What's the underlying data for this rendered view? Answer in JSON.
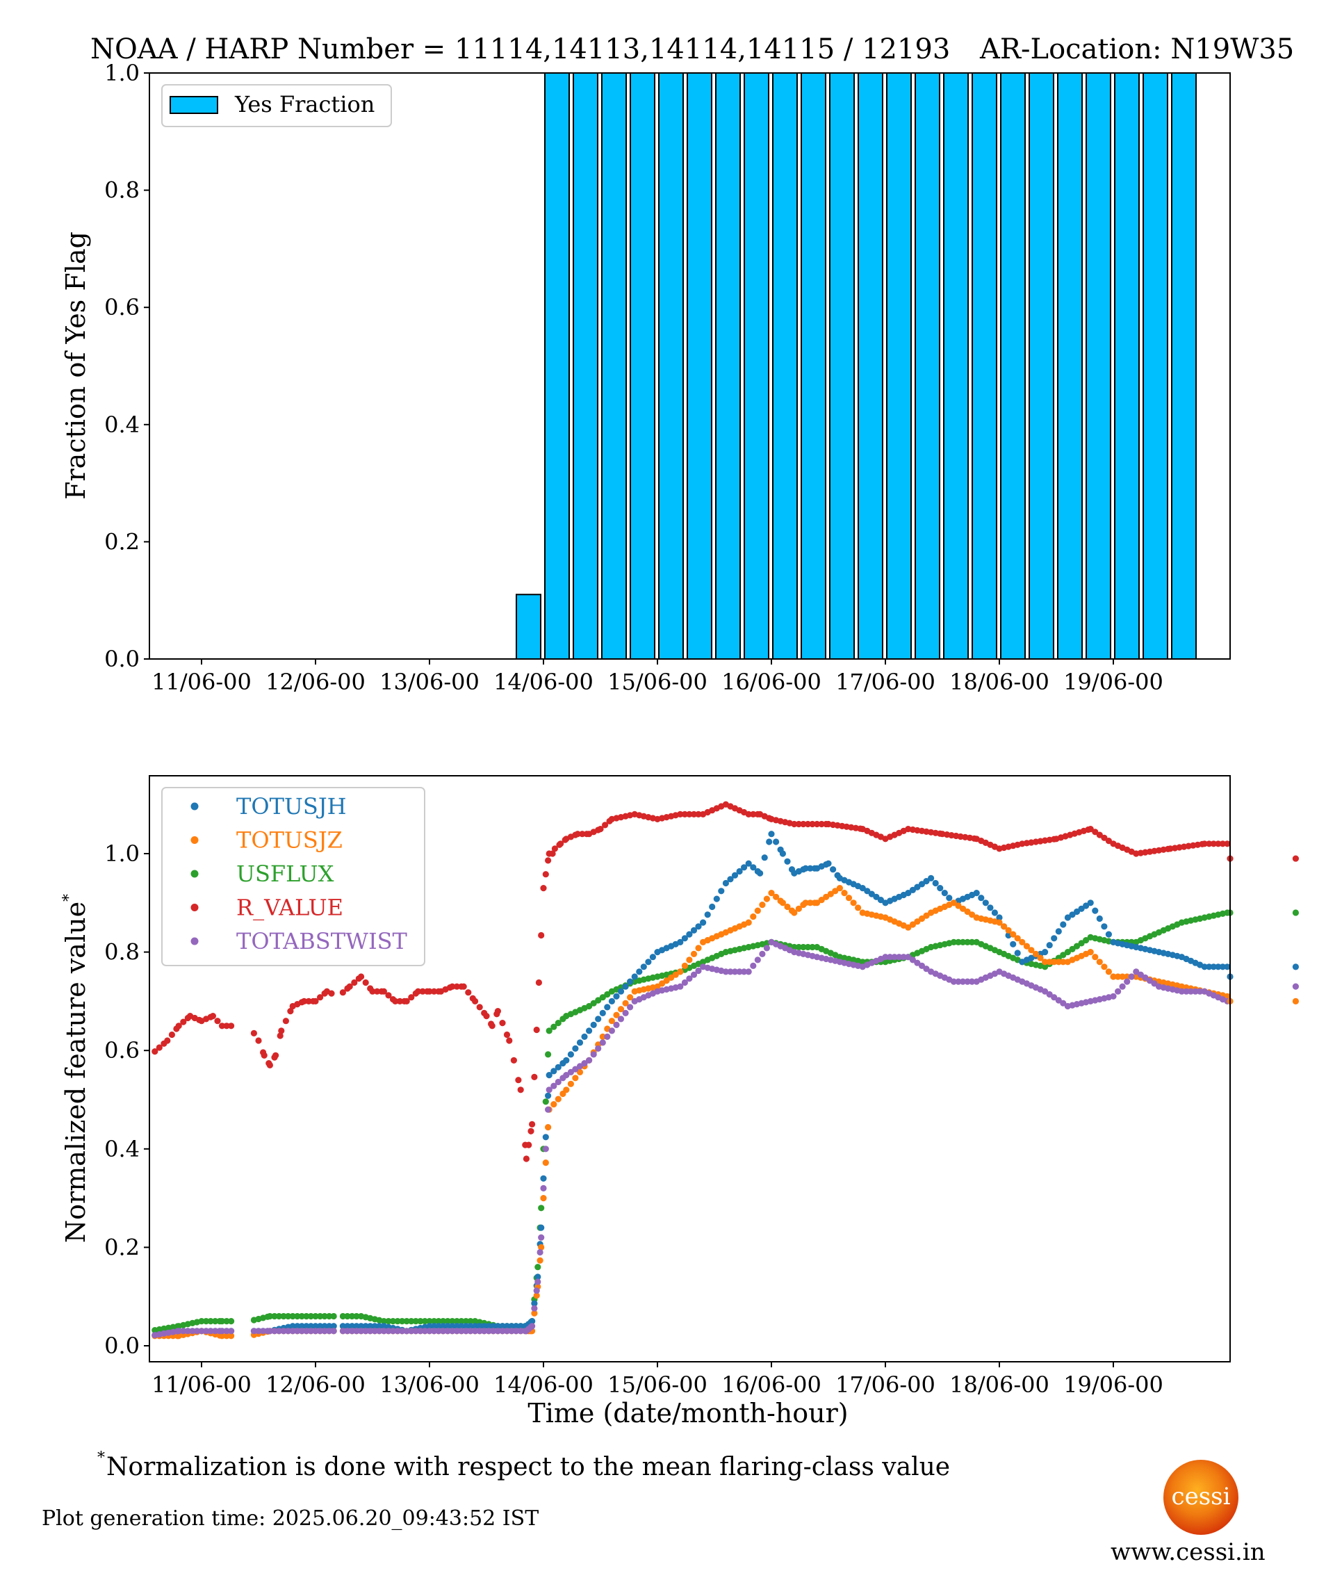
{
  "header": {
    "title_left": "NOAA / HARP Number = 11114,14113,14114,14115 / 12193",
    "title_right": "AR-Location: N19W35"
  },
  "footer": {
    "footnote_marker": "*",
    "footnote": "Normalization is done with respect to the mean flaring-class value",
    "generation_time": "Plot generation time: 2025.06.20_09:43:52 IST",
    "website": "www.cessi.in",
    "logo_text": "cessi"
  },
  "colors": {
    "bar_fill": "#00bfff",
    "TOTUSJH": "#1f77b4",
    "TOTUSJZ": "#ff7f0e",
    "USFLUX": "#2ca02c",
    "R_VALUE": "#d62728",
    "TOTABSTWIST": "#9467bd"
  },
  "chart_data": [
    {
      "type": "bar",
      "ylabel": "Fraction of Yes Flag",
      "xlabel": "",
      "ylim": [
        0.0,
        1.0
      ],
      "yticks": [
        "0.0",
        "0.2",
        "0.4",
        "0.6",
        "0.8",
        "1.0"
      ],
      "xticks": [
        "11/06-00",
        "12/06-00",
        "13/06-00",
        "14/06-00",
        "15/06-00",
        "16/06-00",
        "17/06-00",
        "18/06-00",
        "19/06-00"
      ],
      "legend": {
        "position": "upper-left",
        "entries": [
          "Yes Fraction"
        ]
      },
      "series": [
        {
          "name": "Yes Fraction",
          "bin_hours": 6,
          "start_bin": "13/06-18",
          "values": [
            0.11,
            1,
            1,
            1,
            1,
            1,
            1,
            1,
            1,
            1,
            1,
            1,
            1,
            1,
            1,
            1,
            1,
            1,
            1,
            1,
            1,
            1,
            1,
            1
          ]
        }
      ]
    },
    {
      "type": "scatter",
      "xlabel": "Time (date/month-hour)",
      "ylabel": "Normalized feature value",
      "ylabel_marker": "*",
      "ylim": [
        -0.02,
        1.15
      ],
      "yticks": [
        "0.0",
        "0.2",
        "0.4",
        "0.6",
        "0.8",
        "1.0"
      ],
      "xticks": [
        "11/06-00",
        "12/06-00",
        "13/06-00",
        "14/06-00",
        "15/06-00",
        "16/06-00",
        "17/06-00",
        "18/06-00",
        "19/06-00"
      ],
      "x_unit": "days since 11/06-00",
      "legend": {
        "position": "upper-left",
        "entries": [
          "TOTUSJH",
          "TOTUSJZ",
          "USFLUX",
          "R_VALUE",
          "TOTABSTWIST"
        ]
      },
      "gaps": [
        [
          0.2,
          0.2
        ],
        [
          0.3,
          0.42
        ],
        [
          0.48,
          0.48
        ],
        [
          1.18,
          1.2
        ],
        [
          1.2,
          1.2
        ],
        [
          4.89,
          4.89
        ]
      ],
      "series": [
        {
          "name": "R_VALUE",
          "x": [
            -0.45,
            -0.3,
            -0.2,
            -0.1,
            0.0,
            0.1,
            0.18,
            0.42,
            0.5,
            0.55,
            0.6,
            0.65,
            0.7,
            0.8,
            0.9,
            1.0,
            1.1,
            1.2,
            1.3,
            1.4,
            1.5,
            1.6,
            1.7,
            1.8,
            1.9,
            2.0,
            2.1,
            2.2,
            2.3,
            2.4,
            2.5,
            2.55,
            2.6,
            2.7,
            2.8,
            2.85,
            2.9,
            3.0,
            3.05,
            3.08,
            3.1,
            3.15,
            3.2,
            3.3,
            3.4,
            3.5,
            3.6,
            3.8,
            4.0,
            4.2,
            4.4,
            4.6,
            4.8,
            4.9,
            5.0,
            5.2,
            5.5,
            5.8,
            6.0,
            6.2,
            6.5,
            6.8,
            7.0,
            7.2,
            7.5,
            7.8,
            8.0,
            8.2,
            8.5,
            8.8,
            9.0,
            9.2,
            9.5,
            9.6
          ],
          "y": [
            0.59,
            0.62,
            0.65,
            0.67,
            0.66,
            0.67,
            0.65,
            0.65,
            0.62,
            0.59,
            0.57,
            0.59,
            0.64,
            0.69,
            0.7,
            0.7,
            0.72,
            0.71,
            0.73,
            0.75,
            0.72,
            0.72,
            0.7,
            0.7,
            0.72,
            0.72,
            0.72,
            0.73,
            0.73,
            0.7,
            0.67,
            0.65,
            0.68,
            0.62,
            0.52,
            0.38,
            0.45,
            0.93,
            1.0,
            1.0,
            1.01,
            1.02,
            1.03,
            1.04,
            1.04,
            1.05,
            1.07,
            1.08,
            1.07,
            1.08,
            1.08,
            1.1,
            1.08,
            1.08,
            1.07,
            1.06,
            1.06,
            1.05,
            1.03,
            1.05,
            1.04,
            1.03,
            1.01,
            1.02,
            1.03,
            1.05,
            1.02,
            1.0,
            1.01,
            1.02,
            1.02,
            1.01,
            1.0,
            0.99
          ]
        },
        {
          "name": "USFLUX",
          "x": [
            -0.45,
            -0.2,
            0.0,
            0.18,
            0.42,
            0.6,
            0.8,
            1.0,
            1.2,
            1.4,
            1.6,
            1.8,
            2.0,
            2.2,
            2.4,
            2.6,
            2.85,
            2.9,
            2.95,
            2.98,
            3.0,
            3.05,
            3.2,
            3.4,
            3.6,
            3.8,
            4.0,
            4.2,
            4.4,
            4.6,
            4.8,
            5.0,
            5.2,
            5.4,
            5.6,
            5.8,
            6.0,
            6.2,
            6.4,
            6.6,
            6.8,
            7.0,
            7.2,
            7.4,
            7.6,
            7.8,
            8.0,
            8.2,
            8.4,
            8.6,
            8.8,
            9.0,
            9.2,
            9.5,
            9.6
          ],
          "y": [
            0.03,
            0.04,
            0.05,
            0.05,
            0.05,
            0.06,
            0.06,
            0.06,
            0.06,
            0.06,
            0.05,
            0.05,
            0.05,
            0.05,
            0.05,
            0.04,
            0.04,
            0.05,
            0.16,
            0.28,
            0.4,
            0.64,
            0.67,
            0.69,
            0.72,
            0.74,
            0.75,
            0.76,
            0.78,
            0.8,
            0.81,
            0.82,
            0.81,
            0.81,
            0.79,
            0.78,
            0.78,
            0.79,
            0.81,
            0.82,
            0.82,
            0.8,
            0.78,
            0.77,
            0.8,
            0.83,
            0.82,
            0.82,
            0.84,
            0.86,
            0.87,
            0.88,
            0.88,
            0.88,
            0.88
          ]
        },
        {
          "name": "TOTUSJH",
          "x": [
            -0.45,
            -0.2,
            0.0,
            0.18,
            0.42,
            0.6,
            0.8,
            1.0,
            1.2,
            1.4,
            1.6,
            1.8,
            2.0,
            2.2,
            2.4,
            2.6,
            2.85,
            2.9,
            2.95,
            2.98,
            3.0,
            3.05,
            3.2,
            3.4,
            3.6,
            3.8,
            4.0,
            4.2,
            4.4,
            4.6,
            4.8,
            4.9,
            5.0,
            5.1,
            5.2,
            5.3,
            5.4,
            5.5,
            5.6,
            5.8,
            6.0,
            6.2,
            6.4,
            6.6,
            6.8,
            7.0,
            7.2,
            7.4,
            7.6,
            7.8,
            8.0,
            8.2,
            8.4,
            8.6,
            8.8,
            9.0,
            9.2,
            9.5,
            9.6
          ],
          "y": [
            0.02,
            0.03,
            0.03,
            0.03,
            0.03,
            0.03,
            0.04,
            0.04,
            0.04,
            0.04,
            0.04,
            0.03,
            0.04,
            0.04,
            0.04,
            0.04,
            0.04,
            0.05,
            0.14,
            0.24,
            0.34,
            0.55,
            0.58,
            0.64,
            0.7,
            0.75,
            0.8,
            0.82,
            0.86,
            0.94,
            0.98,
            0.96,
            1.04,
            1.0,
            0.96,
            0.97,
            0.97,
            0.98,
            0.95,
            0.93,
            0.9,
            0.92,
            0.95,
            0.9,
            0.92,
            0.87,
            0.78,
            0.8,
            0.87,
            0.9,
            0.82,
            0.81,
            0.8,
            0.79,
            0.77,
            0.77,
            0.78,
            0.77,
            0.77
          ]
        },
        {
          "name": "TOTUSJZ",
          "x": [
            -0.45,
            -0.2,
            0.0,
            0.18,
            0.42,
            0.6,
            0.8,
            1.0,
            1.2,
            1.4,
            1.6,
            1.8,
            2.0,
            2.2,
            2.4,
            2.6,
            2.85,
            2.9,
            2.95,
            2.98,
            3.0,
            3.05,
            3.2,
            3.4,
            3.6,
            3.8,
            4.0,
            4.2,
            4.4,
            4.6,
            4.8,
            5.0,
            5.1,
            5.2,
            5.3,
            5.4,
            5.6,
            5.8,
            6.0,
            6.2,
            6.4,
            6.6,
            6.8,
            7.0,
            7.2,
            7.4,
            7.6,
            7.8,
            8.0,
            8.2,
            8.4,
            8.6,
            8.8,
            9.0,
            9.2,
            9.5,
            9.6
          ],
          "y": [
            0.02,
            0.02,
            0.03,
            0.02,
            0.02,
            0.03,
            0.03,
            0.03,
            0.03,
            0.03,
            0.03,
            0.03,
            0.03,
            0.03,
            0.03,
            0.03,
            0.03,
            0.03,
            0.12,
            0.2,
            0.3,
            0.48,
            0.52,
            0.58,
            0.66,
            0.72,
            0.73,
            0.76,
            0.82,
            0.84,
            0.86,
            0.92,
            0.9,
            0.88,
            0.9,
            0.9,
            0.93,
            0.88,
            0.87,
            0.85,
            0.88,
            0.9,
            0.87,
            0.86,
            0.82,
            0.78,
            0.78,
            0.8,
            0.75,
            0.75,
            0.74,
            0.73,
            0.72,
            0.71,
            0.72,
            0.71,
            0.7
          ]
        },
        {
          "name": "TOTABSTWIST",
          "x": [
            -0.45,
            -0.2,
            0.0,
            0.18,
            0.42,
            0.6,
            0.8,
            1.0,
            1.2,
            1.4,
            1.6,
            1.8,
            2.0,
            2.2,
            2.4,
            2.6,
            2.85,
            2.9,
            2.95,
            2.98,
            3.0,
            3.05,
            3.2,
            3.4,
            3.6,
            3.8,
            4.0,
            4.2,
            4.4,
            4.6,
            4.8,
            5.0,
            5.2,
            5.4,
            5.6,
            5.8,
            6.0,
            6.2,
            6.4,
            6.6,
            6.8,
            7.0,
            7.2,
            7.4,
            7.6,
            7.8,
            8.0,
            8.2,
            8.4,
            8.6,
            8.8,
            9.0,
            9.2,
            9.5,
            9.6
          ],
          "y": [
            0.02,
            0.03,
            0.03,
            0.03,
            0.03,
            0.03,
            0.03,
            0.03,
            0.03,
            0.03,
            0.03,
            0.03,
            0.03,
            0.03,
            0.03,
            0.03,
            0.03,
            0.04,
            0.13,
            0.22,
            0.32,
            0.52,
            0.55,
            0.58,
            0.64,
            0.7,
            0.72,
            0.73,
            0.77,
            0.76,
            0.76,
            0.82,
            0.8,
            0.79,
            0.78,
            0.77,
            0.79,
            0.79,
            0.76,
            0.74,
            0.74,
            0.76,
            0.74,
            0.72,
            0.69,
            0.7,
            0.71,
            0.76,
            0.73,
            0.72,
            0.72,
            0.7,
            0.7,
            0.73,
            0.73
          ]
        }
      ]
    }
  ]
}
